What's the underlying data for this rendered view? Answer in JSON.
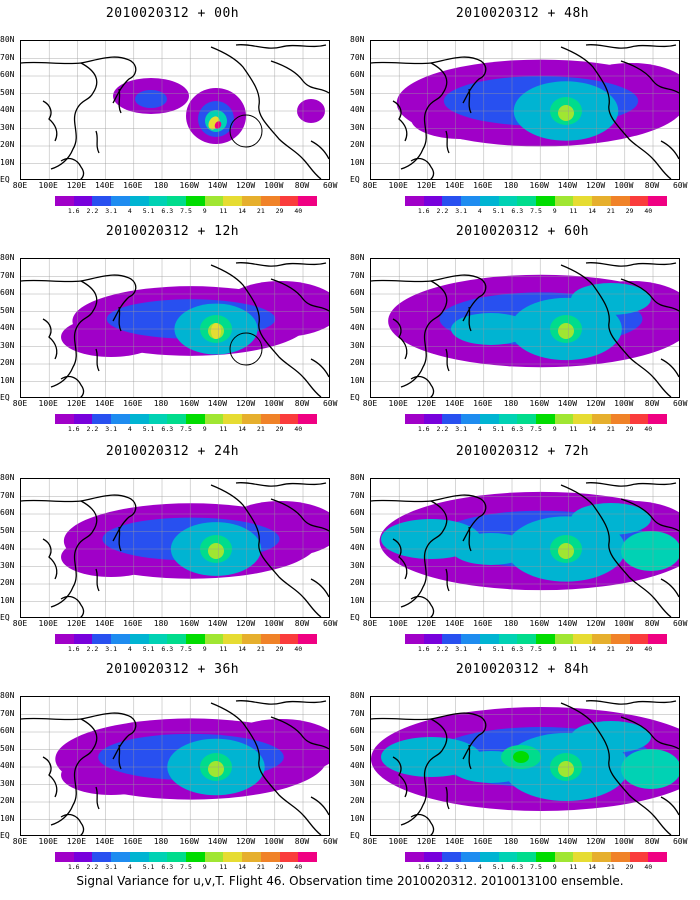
{
  "caption": "Signal Variance for u,v,T. Flight 46. Observation time 2010020312. 2010013100 ensemble.",
  "lat_labels": [
    "80N",
    "70N",
    "60N",
    "50N",
    "40N",
    "30N",
    "20N",
    "10N",
    "EQ"
  ],
  "lon_labels": [
    "80E",
    "100E",
    "120E",
    "140E",
    "160E",
    "180",
    "160W",
    "140W",
    "120W",
    "100W",
    "80W",
    "60W"
  ],
  "colorbar": {
    "labels": [
      "1.6",
      "2.2",
      "3.1",
      "4",
      "5.1",
      "6.3",
      "7.5",
      "9",
      "11",
      "14",
      "21",
      "29",
      "40"
    ],
    "colors": [
      "#a000c8",
      "#7800dc",
      "#2850f0",
      "#1e8cf0",
      "#00b4d2",
      "#00d2b4",
      "#00dc8c",
      "#00dc00",
      "#a0e632",
      "#e6dc32",
      "#e6af2d",
      "#f08228",
      "#fa3c3c",
      "#f00082"
    ]
  },
  "panels": [
    {
      "title": "2010020312 + 00h",
      "hours": 0
    },
    {
      "title": "2010020312 + 48h",
      "hours": 48
    },
    {
      "title": "2010020312 + 12h",
      "hours": 12
    },
    {
      "title": "2010020312 + 60h",
      "hours": 60
    },
    {
      "title": "2010020312 + 24h",
      "hours": 24
    },
    {
      "title": "2010020312 + 72h",
      "hours": 72
    },
    {
      "title": "2010020312 + 36h",
      "hours": 36
    },
    {
      "title": "2010020312 + 84h",
      "hours": 84
    }
  ]
}
